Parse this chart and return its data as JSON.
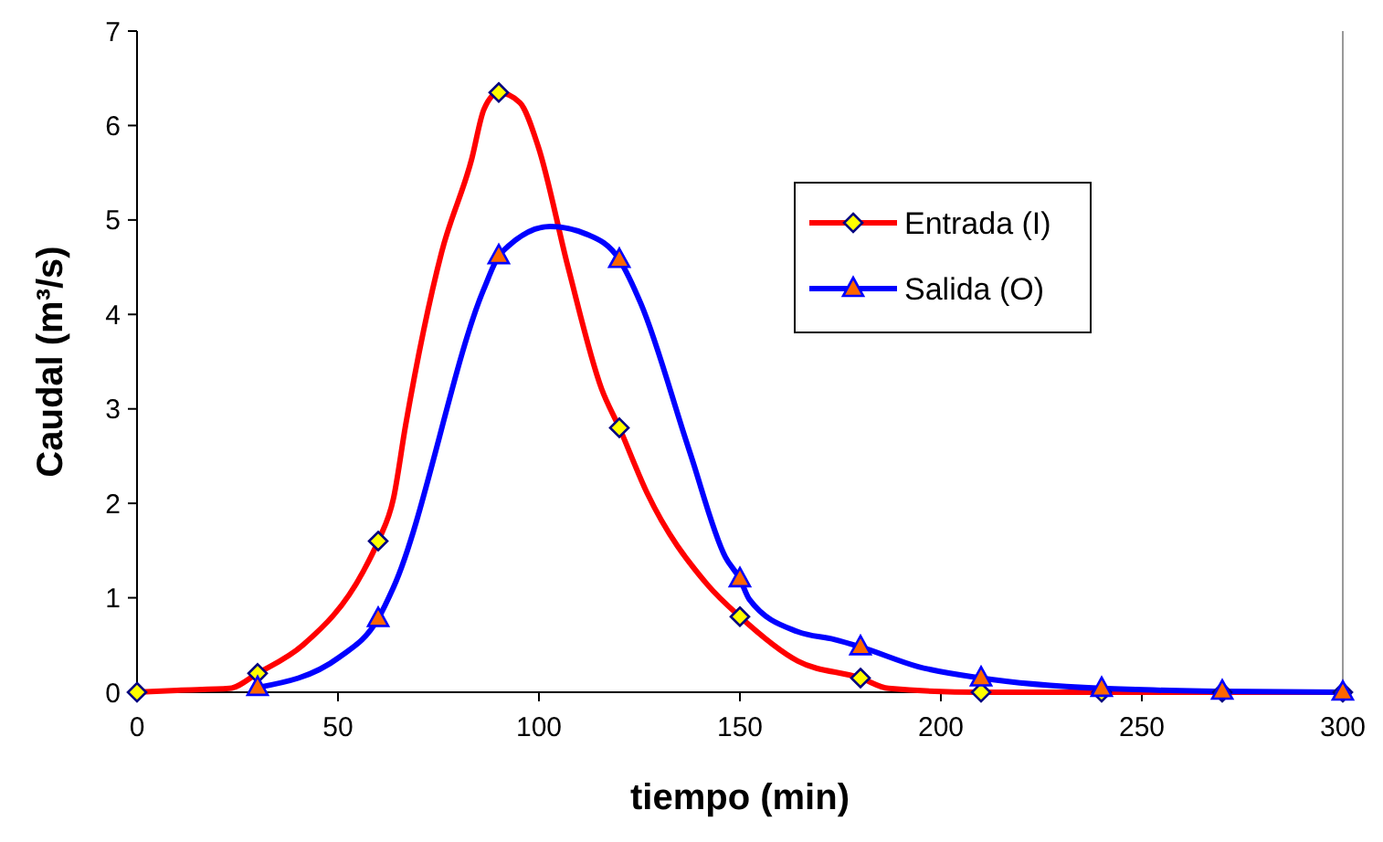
{
  "chart_data": {
    "type": "line",
    "xlabel": "tiempo (min)",
    "ylabel": "Caudal (m³/s)",
    "xlim": [
      0,
      300
    ],
    "ylim": [
      0,
      7
    ],
    "xticks": [
      0,
      50,
      100,
      150,
      200,
      250,
      300
    ],
    "yticks": [
      0,
      1,
      2,
      3,
      4,
      5,
      6,
      7
    ],
    "grid": false,
    "legend": "top right",
    "series": [
      {
        "name": "Entrada (I)",
        "color": "#ff0000",
        "marker": "none",
        "x": [
          0,
          10,
          23,
          30,
          41.3,
          56.3,
          60,
          63.8,
          66.8,
          75.8,
          83.3,
          86.3,
          90,
          95.3,
          99.8,
          107.3,
          115.6,
          120,
          126.9,
          141.9,
          150,
          164.4,
          180,
          187,
          210,
          240,
          270,
          300
        ],
        "values": [
          0,
          0.02,
          0.04,
          0.2,
          0.5,
          1.28,
          1.6,
          2.05,
          2.82,
          4.66,
          5.65,
          6.17,
          6.35,
          6.24,
          5.78,
          4.49,
          3.21,
          2.8,
          2.11,
          1.14,
          0.8,
          0.33,
          0.15,
          0.04,
          0,
          0,
          0,
          0
        ]
      },
      {
        "name": "Salida (O)",
        "color": "#0000ff",
        "marker": "none",
        "x": [
          30,
          50.3,
          60,
          63.8,
          86.3,
          90,
          92.3,
          102.8,
          111.8,
          120,
          125.4,
          137.4,
          146.4,
          150,
          152.4,
          164.4,
          173.4,
          180,
          194.4,
          210,
          240,
          270,
          300
        ],
        "values": [
          0.05,
          0.37,
          0.78,
          1.11,
          4.27,
          4.62,
          4.72,
          4.93,
          4.85,
          4.58,
          4.11,
          2.56,
          1.43,
          1.2,
          0.98,
          0.64,
          0.56,
          0.48,
          0.27,
          0.15,
          0.04,
          0.01,
          0
        ]
      },
      {
        "type": "scatter",
        "color": "#ffff00",
        "marker": "diamond",
        "x": [
          0,
          30,
          60,
          90,
          120,
          150,
          180,
          210,
          240,
          270,
          300
        ],
        "values": [
          0,
          0.2,
          1.6,
          6.35,
          2.8,
          0.8,
          0.15,
          0,
          0,
          0,
          0
        ]
      },
      {
        "type": "scatter",
        "color": "#ff6600",
        "marker": "triangle",
        "x": [
          30,
          60,
          90,
          120,
          150,
          180,
          210,
          240,
          270,
          300
        ],
        "values": [
          0.05,
          0.78,
          4.62,
          4.58,
          1.2,
          0.48,
          0.15,
          0.04,
          0.01,
          0
        ]
      }
    ]
  }
}
